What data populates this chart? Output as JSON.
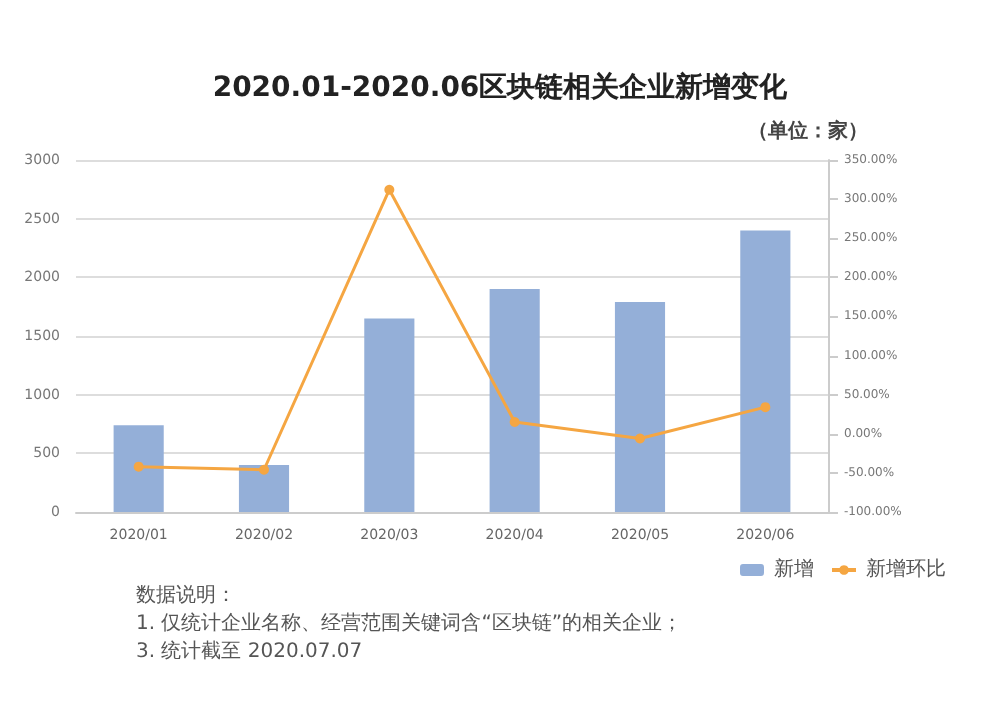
{
  "chart_data": {
    "type": "bar",
    "title": "2020.01-2020.06区块链相关企业新增变化",
    "categories": [
      "2020/01",
      "2020/02",
      "2020/03",
      "2020/04",
      "2020/05",
      "2020/06"
    ],
    "series": [
      {
        "name": "新增",
        "color": "#94afd8",
        "values": [
          740,
          400,
          1650,
          1900,
          1790,
          2400
        ]
      },
      {
        "name": "新增环比",
        "type": "line",
        "axis": "y2",
        "color": "#f5a642",
        "values": [
          -42,
          -46,
          312,
          15,
          -6,
          34
        ]
      }
    ],
    "ylim": [
      0,
      3000
    ],
    "yticks": [
      0,
      500,
      1000,
      1500,
      2000,
      2500,
      3000
    ],
    "y2lim": [
      -100,
      350
    ],
    "y2ticks": [
      {
        "value": -100,
        "label": "-100.00%"
      },
      {
        "value": -50,
        "label": "-50.00%"
      },
      {
        "value": 0,
        "label": "0.00%"
      },
      {
        "value": 50,
        "label": "50.00%"
      },
      {
        "value": 100,
        "label": "100.00%"
      },
      {
        "value": 150,
        "label": "150.00%"
      },
      {
        "value": 200,
        "label": "200.00%"
      },
      {
        "value": 250,
        "label": "250.00%"
      },
      {
        "value": 300,
        "label": "300.00%"
      },
      {
        "value": 350,
        "label": "350.00%"
      }
    ],
    "annotations": [
      "（单位：家）",
      "数据说明：",
      "1. 仅统计企业名称、经营范围关键词含“区块链”的相关企业；",
      "3. 统计截至 2020.07.07"
    ],
    "grid": "y",
    "legend": "bottom right",
    "marker": "circle",
    "line_style": "solid"
  }
}
